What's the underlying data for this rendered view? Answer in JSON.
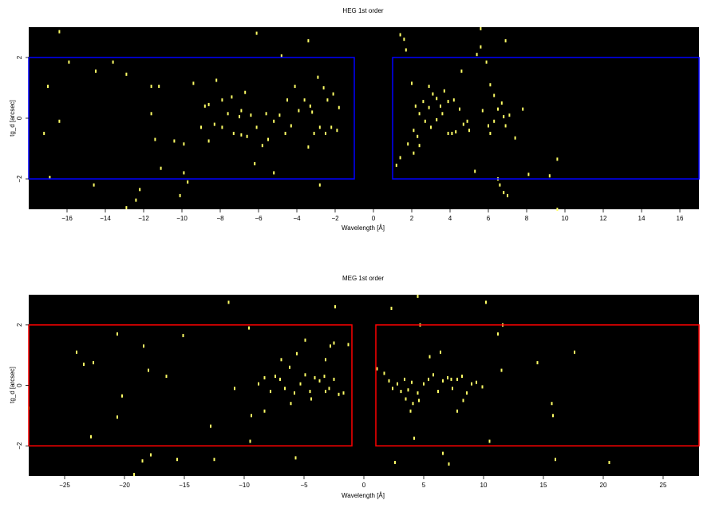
{
  "chart_data": [
    {
      "type": "scatter",
      "title": "HEG 1st order",
      "xlabel": "Wavelength [Å]",
      "ylabel": "tg_d [arcsec]",
      "xlim": [
        -18,
        17
      ],
      "ylim": [
        -3.0,
        3.0
      ],
      "xticks": [
        -16,
        -14,
        -12,
        -10,
        -8,
        -6,
        -4,
        -2,
        0,
        2,
        4,
        6,
        8,
        10,
        12,
        14,
        16
      ],
      "yticks": [
        -2,
        0,
        2
      ],
      "background": "#000000",
      "point_color": "#ffff66",
      "regions": [
        {
          "x": [
            -18,
            -1.0
          ],
          "y": [
            -2.0,
            2.0
          ],
          "color": "#0000ff"
        },
        {
          "x": [
            1.0,
            17
          ],
          "y": [
            -2.0,
            2.0
          ],
          "color": "#0000ff"
        }
      ],
      "points": [
        [
          -16.4,
          2.85
        ],
        [
          -15.9,
          1.85
        ],
        [
          -14.5,
          1.55
        ],
        [
          -13.6,
          1.85
        ],
        [
          -12.9,
          1.45
        ],
        [
          -17.0,
          1.05
        ],
        [
          -11.6,
          1.05
        ],
        [
          -11.2,
          1.05
        ],
        [
          -9.4,
          1.15
        ],
        [
          -8.2,
          1.25
        ],
        [
          -6.1,
          2.8
        ],
        [
          -4.8,
          2.05
        ],
        [
          -3.4,
          2.55
        ],
        [
          -17.2,
          -0.5
        ],
        [
          -16.4,
          -0.1
        ],
        [
          -11.6,
          0.15
        ],
        [
          -11.4,
          -0.7
        ],
        [
          -10.4,
          -0.75
        ],
        [
          -9.9,
          -0.85
        ],
        [
          -8.6,
          -0.75
        ],
        [
          -8.3,
          -0.2
        ],
        [
          -8.6,
          0.45
        ],
        [
          -7.9,
          0.6
        ],
        [
          -7.6,
          0.15
        ],
        [
          -7.3,
          -0.5
        ],
        [
          -6.9,
          -0.55
        ],
        [
          -6.6,
          -0.6
        ],
        [
          -6.4,
          0.1
        ],
        [
          -6.1,
          -0.3
        ],
        [
          -5.8,
          -0.9
        ],
        [
          -5.5,
          -0.7
        ],
        [
          -5.2,
          -0.1
        ],
        [
          -4.9,
          0.1
        ],
        [
          -4.6,
          -0.5
        ],
        [
          -4.3,
          -0.25
        ],
        [
          -3.9,
          0.25
        ],
        [
          -3.6,
          0.6
        ],
        [
          -3.3,
          0.4
        ],
        [
          -3.1,
          -0.5
        ],
        [
          -2.8,
          -0.3
        ],
        [
          -2.5,
          -0.5
        ],
        [
          -2.2,
          -0.3
        ],
        [
          -1.9,
          -0.4
        ],
        [
          -1.8,
          0.35
        ],
        [
          -2.1,
          0.8
        ],
        [
          -2.6,
          1.0
        ],
        [
          -3.2,
          0.2
        ],
        [
          -4.1,
          1.05
        ],
        [
          -4.5,
          0.6
        ],
        [
          -5.6,
          0.15
        ],
        [
          -6.7,
          0.85
        ],
        [
          -7.4,
          0.7
        ],
        [
          -6.9,
          0.25
        ],
        [
          -7.9,
          -0.3
        ],
        [
          -8.8,
          0.4
        ],
        [
          -9.9,
          -1.8
        ],
        [
          -11.1,
          -1.65
        ],
        [
          -12.2,
          -2.35
        ],
        [
          -14.6,
          -2.2
        ],
        [
          -16.9,
          -1.95
        ],
        [
          -10.1,
          -2.55
        ],
        [
          -9.7,
          -2.1
        ],
        [
          -12.4,
          -2.7
        ],
        [
          -12.9,
          -2.95
        ],
        [
          -2.8,
          -2.2
        ],
        [
          -5.2,
          -1.8
        ],
        [
          -6.2,
          -1.5
        ],
        [
          -3.4,
          -0.95
        ],
        [
          -2.9,
          1.35
        ],
        [
          -2.4,
          0.6
        ],
        [
          -9.0,
          -0.3
        ],
        [
          -7.0,
          0.05
        ],
        [
          1.2,
          -1.55
        ],
        [
          1.4,
          -1.3
        ],
        [
          1.8,
          -0.85
        ],
        [
          2.1,
          -1.15
        ],
        [
          2.4,
          -0.9
        ],
        [
          1.6,
          2.6
        ],
        [
          1.7,
          2.25
        ],
        [
          2.0,
          1.15
        ],
        [
          2.2,
          0.4
        ],
        [
          2.4,
          0.15
        ],
        [
          2.6,
          0.55
        ],
        [
          2.9,
          0.35
        ],
        [
          3.1,
          0.8
        ],
        [
          3.3,
          0.65
        ],
        [
          3.5,
          0.4
        ],
        [
          3.7,
          0.9
        ],
        [
          3.9,
          0.55
        ],
        [
          4.1,
          -0.5
        ],
        [
          4.3,
          -0.45
        ],
        [
          4.5,
          0.3
        ],
        [
          4.7,
          -0.2
        ],
        [
          4.9,
          -0.1
        ],
        [
          2.1,
          -0.4
        ],
        [
          2.3,
          -0.6
        ],
        [
          2.7,
          -0.1
        ],
        [
          3.0,
          -0.3
        ],
        [
          3.3,
          -0.05
        ],
        [
          3.6,
          0.15
        ],
        [
          3.9,
          -0.5
        ],
        [
          4.2,
          0.6
        ],
        [
          5.0,
          -0.4
        ],
        [
          5.4,
          2.1
        ],
        [
          5.6,
          2.35
        ],
        [
          5.9,
          1.85
        ],
        [
          6.1,
          1.1
        ],
        [
          6.3,
          0.75
        ],
        [
          6.5,
          0.3
        ],
        [
          6.7,
          0.5
        ],
        [
          6.9,
          -0.25
        ],
        [
          7.1,
          0.1
        ],
        [
          7.4,
          -0.65
        ],
        [
          7.8,
          0.3
        ],
        [
          6.0,
          -0.25
        ],
        [
          6.3,
          -0.1
        ],
        [
          5.7,
          0.25
        ],
        [
          6.6,
          -2.2
        ],
        [
          6.8,
          -2.45
        ],
        [
          7.0,
          -2.55
        ],
        [
          5.3,
          -1.75
        ],
        [
          8.1,
          -1.85
        ],
        [
          9.2,
          -1.9
        ],
        [
          9.6,
          -1.35
        ],
        [
          9.6,
          -3.0
        ],
        [
          6.9,
          2.55
        ],
        [
          5.6,
          2.95
        ],
        [
          1.4,
          2.75
        ],
        [
          4.6,
          1.55
        ],
        [
          2.9,
          1.05
        ],
        [
          6.1,
          -0.5
        ],
        [
          6.8,
          0.05
        ],
        [
          6.5,
          -2.0
        ]
      ]
    },
    {
      "type": "scatter",
      "title": "MEG 1st order",
      "xlabel": "Wavelength [Å]",
      "ylabel": "tg_d [arcsec]",
      "xlim": [
        -28,
        28
      ],
      "ylim": [
        -3.0,
        3.0
      ],
      "xticks": [
        -25,
        -20,
        -15,
        -10,
        -5,
        0,
        5,
        10,
        15,
        20,
        25
      ],
      "yticks": [
        -2,
        0,
        2
      ],
      "background": "#000000",
      "point_color": "#ffff66",
      "regions": [
        {
          "x": [
            -28,
            -1.0
          ],
          "y": [
            -2.0,
            2.0
          ],
          "color": "#ff0000"
        },
        {
          "x": [
            1.0,
            28
          ],
          "y": [
            -2.0,
            2.0
          ],
          "color": "#ff0000"
        }
      ],
      "points": [
        [
          -24.0,
          1.1
        ],
        [
          -23.4,
          0.7
        ],
        [
          -22.6,
          0.75
        ],
        [
          -20.6,
          1.7
        ],
        [
          -18.4,
          1.3
        ],
        [
          -18.0,
          0.5
        ],
        [
          -16.5,
          0.3
        ],
        [
          -15.1,
          1.65
        ],
        [
          -20.2,
          -0.35
        ],
        [
          -20.6,
          -1.05
        ],
        [
          -22.8,
          -1.7
        ],
        [
          -28.0,
          -0.75
        ],
        [
          -12.8,
          -1.35
        ],
        [
          -11.3,
          2.75
        ],
        [
          -9.6,
          1.9
        ],
        [
          -10.8,
          -0.1
        ],
        [
          -8.8,
          0.05
        ],
        [
          -8.3,
          0.25
        ],
        [
          -7.8,
          -0.2
        ],
        [
          -7.4,
          0.3
        ],
        [
          -7.0,
          0.2
        ],
        [
          -6.6,
          -0.1
        ],
        [
          -6.2,
          0.6
        ],
        [
          -5.8,
          -0.25
        ],
        [
          -5.3,
          0.05
        ],
        [
          -4.9,
          0.35
        ],
        [
          -4.5,
          -0.2
        ],
        [
          -4.1,
          0.25
        ],
        [
          -3.7,
          0.15
        ],
        [
          -3.3,
          0.3
        ],
        [
          -2.9,
          -0.1
        ],
        [
          -2.5,
          0.2
        ],
        [
          -2.1,
          -0.3
        ],
        [
          -1.7,
          -0.25
        ],
        [
          -6.9,
          0.85
        ],
        [
          -5.6,
          1.05
        ],
        [
          -4.9,
          1.5
        ],
        [
          -3.2,
          0.85
        ],
        [
          -2.8,
          1.3
        ],
        [
          -2.5,
          1.4
        ],
        [
          -9.4,
          -1.0
        ],
        [
          -8.3,
          -0.85
        ],
        [
          -6.1,
          -0.6
        ],
        [
          -4.4,
          -0.45
        ],
        [
          -3.2,
          -0.2
        ],
        [
          -15.6,
          -2.45
        ],
        [
          -17.8,
          -2.3
        ],
        [
          -18.5,
          -2.5
        ],
        [
          -19.2,
          -2.95
        ],
        [
          -9.5,
          -1.85
        ],
        [
          -5.7,
          -2.4
        ],
        [
          -12.5,
          -2.45
        ],
        [
          -2.4,
          2.6
        ],
        [
          -1.3,
          1.35
        ],
        [
          1.1,
          0.55
        ],
        [
          1.7,
          0.4
        ],
        [
          2.1,
          0.15
        ],
        [
          2.4,
          -0.1
        ],
        [
          2.8,
          0.05
        ],
        [
          3.1,
          -0.2
        ],
        [
          3.4,
          0.2
        ],
        [
          3.7,
          -0.15
        ],
        [
          4.0,
          0.1
        ],
        [
          4.5,
          -0.25
        ],
        [
          5.0,
          0.05
        ],
        [
          5.4,
          0.2
        ],
        [
          5.8,
          0.35
        ],
        [
          6.2,
          -0.2
        ],
        [
          6.6,
          0.15
        ],
        [
          7.0,
          0.25
        ],
        [
          7.4,
          -0.1
        ],
        [
          7.8,
          0.2
        ],
        [
          8.2,
          0.3
        ],
        [
          8.6,
          -0.25
        ],
        [
          9.0,
          0.05
        ],
        [
          9.4,
          0.1
        ],
        [
          9.9,
          -0.05
        ],
        [
          3.5,
          -0.45
        ],
        [
          4.1,
          -0.6
        ],
        [
          4.6,
          -0.5
        ],
        [
          5.5,
          0.95
        ],
        [
          6.4,
          1.1
        ],
        [
          7.3,
          0.2
        ],
        [
          8.3,
          -0.5
        ],
        [
          3.9,
          -0.85
        ],
        [
          7.8,
          -0.85
        ],
        [
          10.2,
          2.75
        ],
        [
          11.2,
          1.7
        ],
        [
          11.6,
          2.0
        ],
        [
          11.5,
          0.5
        ],
        [
          14.5,
          0.75
        ],
        [
          17.6,
          1.1
        ],
        [
          15.7,
          -0.6
        ],
        [
          15.8,
          -1.0
        ],
        [
          16.0,
          -2.45
        ],
        [
          20.5,
          -2.55
        ],
        [
          10.5,
          -1.85
        ],
        [
          4.2,
          -1.75
        ],
        [
          2.6,
          -2.55
        ],
        [
          6.6,
          -2.25
        ],
        [
          7.1,
          -2.6
        ],
        [
          4.5,
          2.95
        ],
        [
          4.7,
          2.0
        ],
        [
          2.3,
          2.55
        ]
      ]
    }
  ]
}
